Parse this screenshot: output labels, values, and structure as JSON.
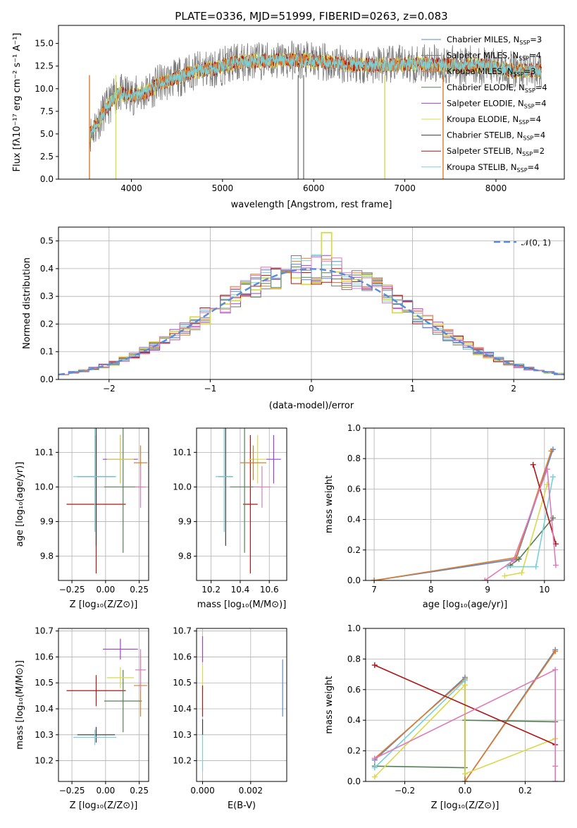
{
  "colors": {
    "Chabrier MILES": "#5b8ac9",
    "Salpeter MILES": "#7a7a7a",
    "Kroupa MILES": "#e07b2a",
    "Chabrier ELODIE": "#557f57",
    "Salpeter ELODIE": "#a040c8",
    "Kroupa ELODIE": "#d9d94a",
    "Chabrier STELIB": "#3a3a3a",
    "Salpeter STELIB": "#b01515",
    "Kroupa STELIB": "#78d0d8",
    "pink": "#e07ab8",
    "normal": "#5b8ad6"
  },
  "chart_data": [
    {
      "type": "line",
      "title": "PLATE=0336, MJD=51999, FIBERID=0263, z=0.083",
      "xlabel": "wavelength [Angstrom, rest frame]",
      "ylabel": "Flux [fλ10⁻¹⁷ erg cm⁻² s⁻¹ A⁻¹]",
      "xlim": [
        3200,
        8750
      ],
      "ylim": [
        0,
        17
      ],
      "xticks": [
        "4000",
        "5000",
        "6000",
        "7000",
        "8000"
      ],
      "yticks": [
        "0.0",
        "2.5",
        "5.0",
        "7.5",
        "10.0",
        "12.5",
        "15.0"
      ],
      "xtick_values": [
        4000,
        5000,
        6000,
        7000,
        8000
      ],
      "ytick_values": [
        0,
        2.5,
        5,
        7.5,
        10,
        12.5,
        15
      ],
      "grid": false,
      "legend": "right",
      "legend_entries": [
        {
          "name": "Chabrier MILES, N",
          "sub": "SSP",
          "tail": "=3"
        },
        {
          "name": "Salpeter MILES, N",
          "sub": "SSP",
          "tail": "=4"
        },
        {
          "name": "Kroupa MILES, N",
          "sub": "SSP",
          "tail": "=3"
        },
        {
          "name": "Chabrier ELODIE, N",
          "sub": "SSP",
          "tail": "=4"
        },
        {
          "name": "Salpeter ELODIE, N",
          "sub": "SSP",
          "tail": "=4"
        },
        {
          "name": "Kroupa ELODIE, N",
          "sub": "SSP",
          "tail": "=4"
        },
        {
          "name": "Chabrier STELIB, N",
          "sub": "SSP",
          "tail": "=4"
        },
        {
          "name": "Salpeter STELIB, N",
          "sub": "SSP",
          "tail": "=2"
        },
        {
          "name": "Kroupa STELIB, N",
          "sub": "SSP",
          "tail": "=4"
        }
      ],
      "continuum": [
        [
          3550,
          5.0
        ],
        [
          3700,
          7.5
        ],
        [
          3850,
          9.5
        ],
        [
          4000,
          9.2
        ],
        [
          4150,
          9.5
        ],
        [
          4300,
          10.5
        ],
        [
          4500,
          11.2
        ],
        [
          4700,
          12.0
        ],
        [
          4900,
          12.2
        ],
        [
          5100,
          12.8
        ],
        [
          5300,
          13.0
        ],
        [
          5500,
          13.1
        ],
        [
          5800,
          13.2
        ],
        [
          6000,
          13.0
        ],
        [
          6300,
          12.8
        ],
        [
          6600,
          12.6
        ],
        [
          6900,
          12.6
        ],
        [
          7200,
          12.8
        ],
        [
          7500,
          12.6
        ],
        [
          7800,
          12.6
        ],
        [
          8000,
          12.3
        ],
        [
          8200,
          12.0
        ],
        [
          8500,
          12.0
        ]
      ]
    },
    {
      "type": "histogram",
      "xlabel": "(data-model)/error",
      "ylabel": "Normed distribution",
      "xlim": [
        -2.5,
        2.5
      ],
      "ylim": [
        0,
        0.55
      ],
      "xticks": [
        "−2",
        "−1",
        "0",
        "1",
        "2"
      ],
      "yticks": [
        "0.0",
        "0.1",
        "0.2",
        "0.3",
        "0.4",
        "0.5"
      ],
      "xtick_values": [
        -2,
        -1,
        0,
        1,
        2
      ],
      "ytick_values": [
        0,
        0.1,
        0.2,
        0.3,
        0.4,
        0.5
      ],
      "grid": true,
      "legend": "top-right",
      "legend_label": "𝒩(0, 1)",
      "bin_width": 0.1,
      "bin_start": -2.5
    },
    {
      "type": "errorbar",
      "xlabel": "Z [log₁₀(Z/Z⊙)]",
      "ylabel": "age  [log₁₀(age/yr)]",
      "xlim": [
        -0.35,
        0.32
      ],
      "ylim": [
        9.73,
        10.17
      ],
      "xticks": [
        "−0.25",
        "0.00",
        "0.25"
      ],
      "yticks": [
        "9.8",
        "9.9",
        "10.0",
        "10.1"
      ],
      "xtick_values": [
        -0.25,
        0,
        0.25
      ],
      "ytick_values": [
        9.8,
        9.9,
        10.0,
        10.1
      ],
      "points": [
        {
          "series": "Salpeter STELIB",
          "x": -0.07,
          "y": 9.95,
          "xerr": 0.22,
          "yerr": 0.2
        },
        {
          "series": "Chabrier STELIB",
          "x": -0.07,
          "y": 10.03,
          "xerr": 0.14,
          "yerr": 0.2
        },
        {
          "series": "Kroupa STELIB",
          "x": -0.08,
          "y": 10.03,
          "xerr": 0.16,
          "yerr": 0.16
        },
        {
          "series": "Chabrier ELODIE",
          "x": 0.13,
          "y": 10.0,
          "xerr": 0.14,
          "yerr": 0.19
        },
        {
          "series": "Salpeter ELODIE",
          "x": 0.11,
          "y": 10.08,
          "xerr": 0.13,
          "yerr": 0.07
        },
        {
          "series": "Kroupa ELODIE",
          "x": 0.11,
          "y": 10.08,
          "xerr": 0.1,
          "yerr": 0.07
        },
        {
          "series": "Kroupa MILES",
          "x": 0.26,
          "y": 10.07,
          "xerr": 0.05,
          "yerr": 0.05
        },
        {
          "series": "pink",
          "x": 0.26,
          "y": 10.0,
          "xerr": 0.04,
          "yerr": 0.06
        }
      ]
    },
    {
      "type": "errorbar",
      "xlabel": "mass [log₁₀(M/M⊙)]",
      "ylabel": "",
      "xlim": [
        10.1,
        10.72
      ],
      "ylim": [
        9.73,
        10.17
      ],
      "xticks": [
        "10.2",
        "10.4",
        "10.6"
      ],
      "yticks": [
        "9.8",
        "9.9",
        "10.0",
        "10.1"
      ],
      "xtick_values": [
        10.2,
        10.4,
        10.6
      ],
      "ytick_values": [
        9.8,
        9.9,
        10.0,
        10.1
      ],
      "points": [
        {
          "series": "Salpeter STELIB",
          "x": 10.47,
          "y": 9.95,
          "xerr": 0.05,
          "yerr": 0.2
        },
        {
          "series": "Chabrier STELIB",
          "x": 10.3,
          "y": 10.03,
          "xerr": 0.05,
          "yerr": 0.2
        },
        {
          "series": "Kroupa STELIB",
          "x": 10.29,
          "y": 10.03,
          "xerr": 0.06,
          "yerr": 0.16
        },
        {
          "series": "Chabrier ELODIE",
          "x": 10.43,
          "y": 10.0,
          "xerr": 0.1,
          "yerr": 0.19
        },
        {
          "series": "Salpeter ELODIE",
          "x": 10.63,
          "y": 10.08,
          "xerr": 0.05,
          "yerr": 0.07
        },
        {
          "series": "Kroupa ELODIE",
          "x": 10.52,
          "y": 10.08,
          "xerr": 0.06,
          "yerr": 0.07
        },
        {
          "series": "Kroupa MILES",
          "x": 10.49,
          "y": 10.07,
          "xerr": 0.09,
          "yerr": 0.05
        },
        {
          "series": "pink",
          "x": 10.55,
          "y": 10.0,
          "xerr": 0.06,
          "yerr": 0.06
        }
      ]
    },
    {
      "type": "line",
      "xlabel": "age  [log₁₀(age/yr)]",
      "ylabel": "mass weight",
      "xlim": [
        6.85,
        10.35
      ],
      "ylim": [
        0,
        1
      ],
      "xticks": [
        "7",
        "8",
        "9",
        "10"
      ],
      "yticks": [
        "0.0",
        "0.2",
        "0.4",
        "0.6",
        "0.8",
        "1.0"
      ],
      "xtick_values": [
        7,
        8,
        9,
        10
      ],
      "ytick_values": [
        0,
        0.2,
        0.4,
        0.6,
        0.8,
        1.0
      ],
      "grid": true,
      "series": [
        {
          "name": "Chabrier MILES",
          "x": [
            7.0,
            9.5,
            10.15
          ],
          "y": [
            0.0,
            0.14,
            0.86
          ]
        },
        {
          "name": "Kroupa MILES",
          "x": [
            7.0,
            9.5,
            10.12
          ],
          "y": [
            0.0,
            0.15,
            0.85
          ]
        },
        {
          "name": "Chabrier ELODIE",
          "x": [
            9.4,
            9.55,
            10.15
          ],
          "y": [
            0.1,
            0.14,
            0.41
          ]
        },
        {
          "name": "Kroupa ELODIE",
          "x": [
            9.3,
            9.6,
            10.05
          ],
          "y": [
            0.03,
            0.05,
            0.63
          ]
        },
        {
          "name": "Kroupa STELIB",
          "x": [
            9.35,
            9.85,
            10.15
          ],
          "y": [
            0.09,
            0.09,
            0.68
          ]
        },
        {
          "name": "Salpeter STELIB",
          "x": [
            9.8,
            10.2
          ],
          "y": [
            0.76,
            0.24
          ]
        },
        {
          "name": "pink",
          "x": [
            8.95,
            9.45,
            10.05,
            10.2
          ],
          "y": [
            0.0,
            0.13,
            0.73,
            0.1
          ]
        }
      ]
    },
    {
      "type": "errorbar",
      "xlabel": "Z [log₁₀(Z/Z⊙)]",
      "ylabel": "mass [log₁₀(M/M⊙)]",
      "xlim": [
        -0.35,
        0.32
      ],
      "ylim": [
        10.12,
        10.71
      ],
      "xticks": [
        "−0.25",
        "0.00",
        "0.25"
      ],
      "yticks": [
        "10.2",
        "10.3",
        "10.4",
        "10.5",
        "10.6",
        "10.7"
      ],
      "xtick_values": [
        -0.25,
        0,
        0.25
      ],
      "ytick_values": [
        10.2,
        10.3,
        10.4,
        10.5,
        10.6,
        10.7
      ],
      "points": [
        {
          "series": "Salpeter STELIB",
          "x": -0.07,
          "y": 10.47,
          "xerr": 0.22,
          "yerr": 0.06
        },
        {
          "series": "Chabrier STELIB",
          "x": -0.07,
          "y": 10.3,
          "xerr": 0.14,
          "yerr": 0.03
        },
        {
          "series": "Kroupa STELIB",
          "x": -0.08,
          "y": 10.29,
          "xerr": 0.16,
          "yerr": 0.03
        },
        {
          "series": "Chabrier ELODIE",
          "x": 0.13,
          "y": 10.43,
          "xerr": 0.14,
          "yerr": 0.12
        },
        {
          "series": "Salpeter ELODIE",
          "x": 0.11,
          "y": 10.63,
          "xerr": 0.13,
          "yerr": 0.04
        },
        {
          "series": "Kroupa ELODIE",
          "x": 0.11,
          "y": 10.52,
          "xerr": 0.1,
          "yerr": 0.04
        },
        {
          "series": "Kroupa MILES",
          "x": 0.26,
          "y": 10.49,
          "xerr": 0.05,
          "yerr": 0.12
        },
        {
          "series": "pink",
          "x": 0.26,
          "y": 10.55,
          "xerr": 0.04,
          "yerr": 0.08
        }
      ]
    },
    {
      "type": "errorbar",
      "xlabel": "E(B-V)",
      "ylabel": "",
      "xlim": [
        -0.00025,
        0.0035
      ],
      "ylim": [
        10.12,
        10.71
      ],
      "xticks": [
        "0.000",
        "0.002"
      ],
      "yticks": [
        "10.2",
        "10.3",
        "10.4",
        "10.5",
        "10.6",
        "10.7"
      ],
      "xtick_values": [
        0,
        0.002
      ],
      "ytick_values": [
        10.2,
        10.3,
        10.4,
        10.5,
        10.6,
        10.7
      ],
      "points": [
        {
          "series": "Salpeter ELODIE",
          "x": 0.0,
          "y": 10.63,
          "xerr": 0,
          "yerr": 0.05
        },
        {
          "series": "Kroupa ELODIE",
          "x": 0.0,
          "y": 10.52,
          "xerr": 0,
          "yerr": 0.05
        },
        {
          "series": "Salpeter STELIB",
          "x": 0.0,
          "y": 10.43,
          "xerr": 0,
          "yerr": 0.06
        },
        {
          "series": "Kroupa STELIB",
          "x": 0.0,
          "y": 10.23,
          "xerr": 0,
          "yerr": 0.07
        },
        {
          "series": "Chabrier STELIB",
          "x": 0.0,
          "y": 10.33,
          "xerr": 0,
          "yerr": 0.03
        },
        {
          "series": "Chabrier MILES",
          "x": 0.00333,
          "y": 10.48,
          "xerr": 0,
          "yerr": 0.11
        }
      ]
    },
    {
      "type": "line",
      "xlabel": "Z [log₁₀(Z/Z⊙)]",
      "ylabel": "mass weight",
      "xlim": [
        -0.33,
        0.33
      ],
      "ylim": [
        0,
        1
      ],
      "xticks": [
        "−0.2",
        "0.0",
        "0.2"
      ],
      "yticks": [
        "0.0",
        "0.2",
        "0.4",
        "0.6",
        "0.8",
        "1.0"
      ],
      "xtick_values": [
        -0.2,
        0,
        0.2
      ],
      "ytick_values": [
        0,
        0.2,
        0.4,
        0.6,
        0.8,
        1.0
      ],
      "grid": true,
      "series": [
        {
          "name": "Chabrier MILES",
          "x": [
            -0.3,
            0.0,
            0.0,
            0.3
          ],
          "y": [
            0.14,
            0.68,
            0.0,
            0.86
          ]
        },
        {
          "name": "Kroupa MILES",
          "x": [
            -0.3,
            0.0,
            0.0,
            0.3
          ],
          "y": [
            0.15,
            0.67,
            0.0,
            0.85
          ]
        },
        {
          "name": "Chabrier ELODIE",
          "x": [
            -0.3,
            0.0,
            0.0,
            0.3
          ],
          "y": [
            0.1,
            0.09,
            0.4,
            0.39
          ]
        },
        {
          "name": "Kroupa ELODIE",
          "x": [
            -0.3,
            0.0,
            0.0,
            0.3
          ],
          "y": [
            0.03,
            0.63,
            0.05,
            0.28
          ]
        },
        {
          "name": "Kroupa STELIB",
          "x": [
            -0.3,
            0.0
          ],
          "y": [
            0.09,
            0.66
          ]
        },
        {
          "name": "Salpeter STELIB",
          "x": [
            -0.3,
            0.3
          ],
          "y": [
            0.76,
            0.24
          ]
        },
        {
          "name": "pink",
          "x": [
            -0.3,
            0.3,
            0.3,
            0.3
          ],
          "y": [
            0.15,
            0.73,
            0.1,
            0.0
          ]
        }
      ]
    }
  ]
}
